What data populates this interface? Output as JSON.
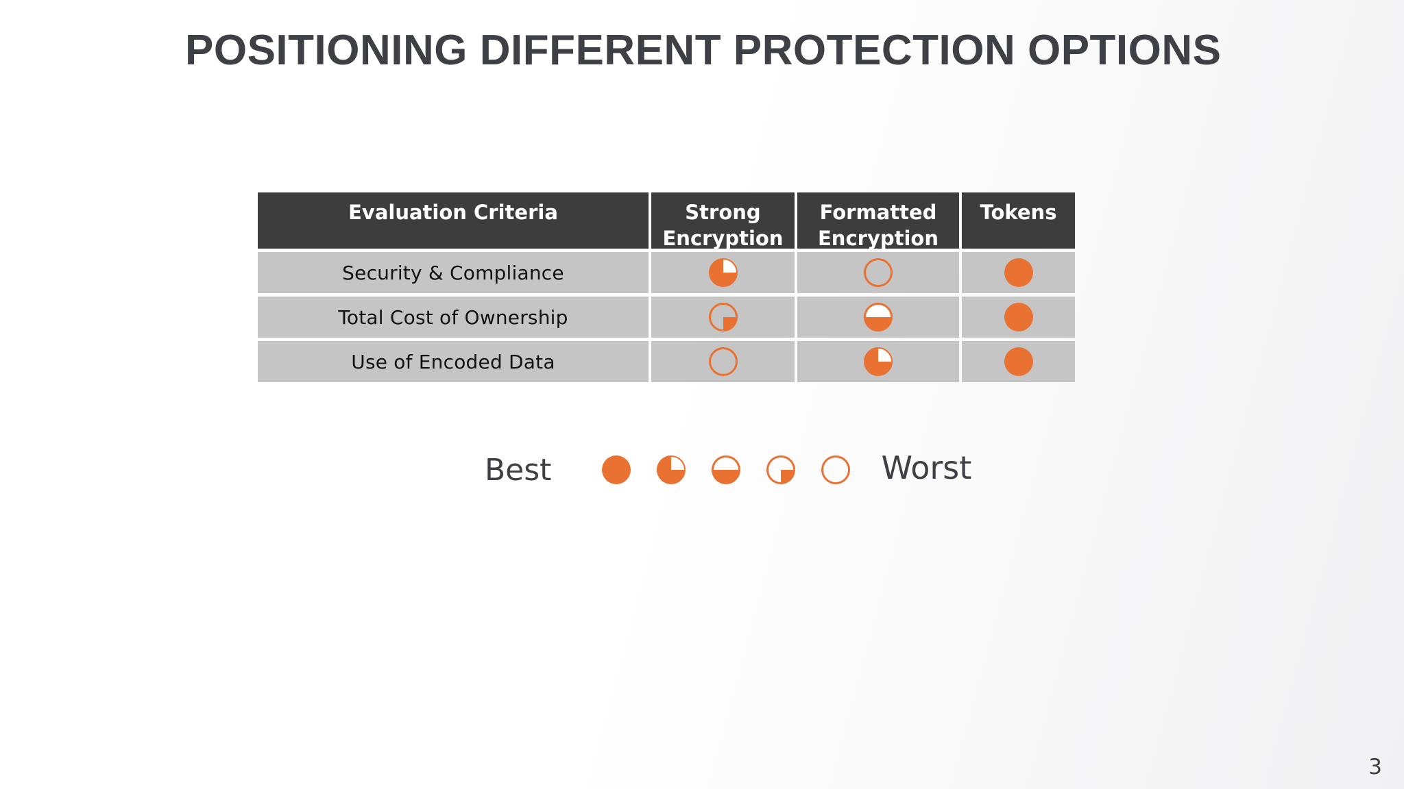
{
  "slide": {
    "title": "POSITIONING DIFFERENT PROTECTION OPTIONS",
    "page_number": "3"
  },
  "table": {
    "columns": {
      "criteria": "Evaluation Criteria",
      "strong_encryption": "Strong Encryption",
      "formatted_encryption": "Formatted Encryption",
      "tokens": "Tokens"
    },
    "rows": [
      {
        "label": "Security & Compliance",
        "ratings": {
          "strong_encryption": 75,
          "formatted_encryption": 0,
          "tokens": 100
        }
      },
      {
        "label": "Total Cost of Ownership",
        "ratings": {
          "strong_encryption": 25,
          "formatted_encryption": 50,
          "tokens": 100
        }
      },
      {
        "label": "Use of Encoded Data",
        "ratings": {
          "strong_encryption": 0,
          "formatted_encryption": 75,
          "tokens": 100
        }
      }
    ],
    "rating_scale_note": "harvey-ball fill percent, 100 = best"
  },
  "legend": {
    "best_label": "Best",
    "worst_label": "Worst",
    "scale_values": [
      100,
      75,
      50,
      25,
      0
    ]
  },
  "colors": {
    "accent_orange": "#E97132",
    "header_bg": "#3D3D3D",
    "row_bg": "#C5C5C5",
    "title_color": "#3F4045"
  }
}
